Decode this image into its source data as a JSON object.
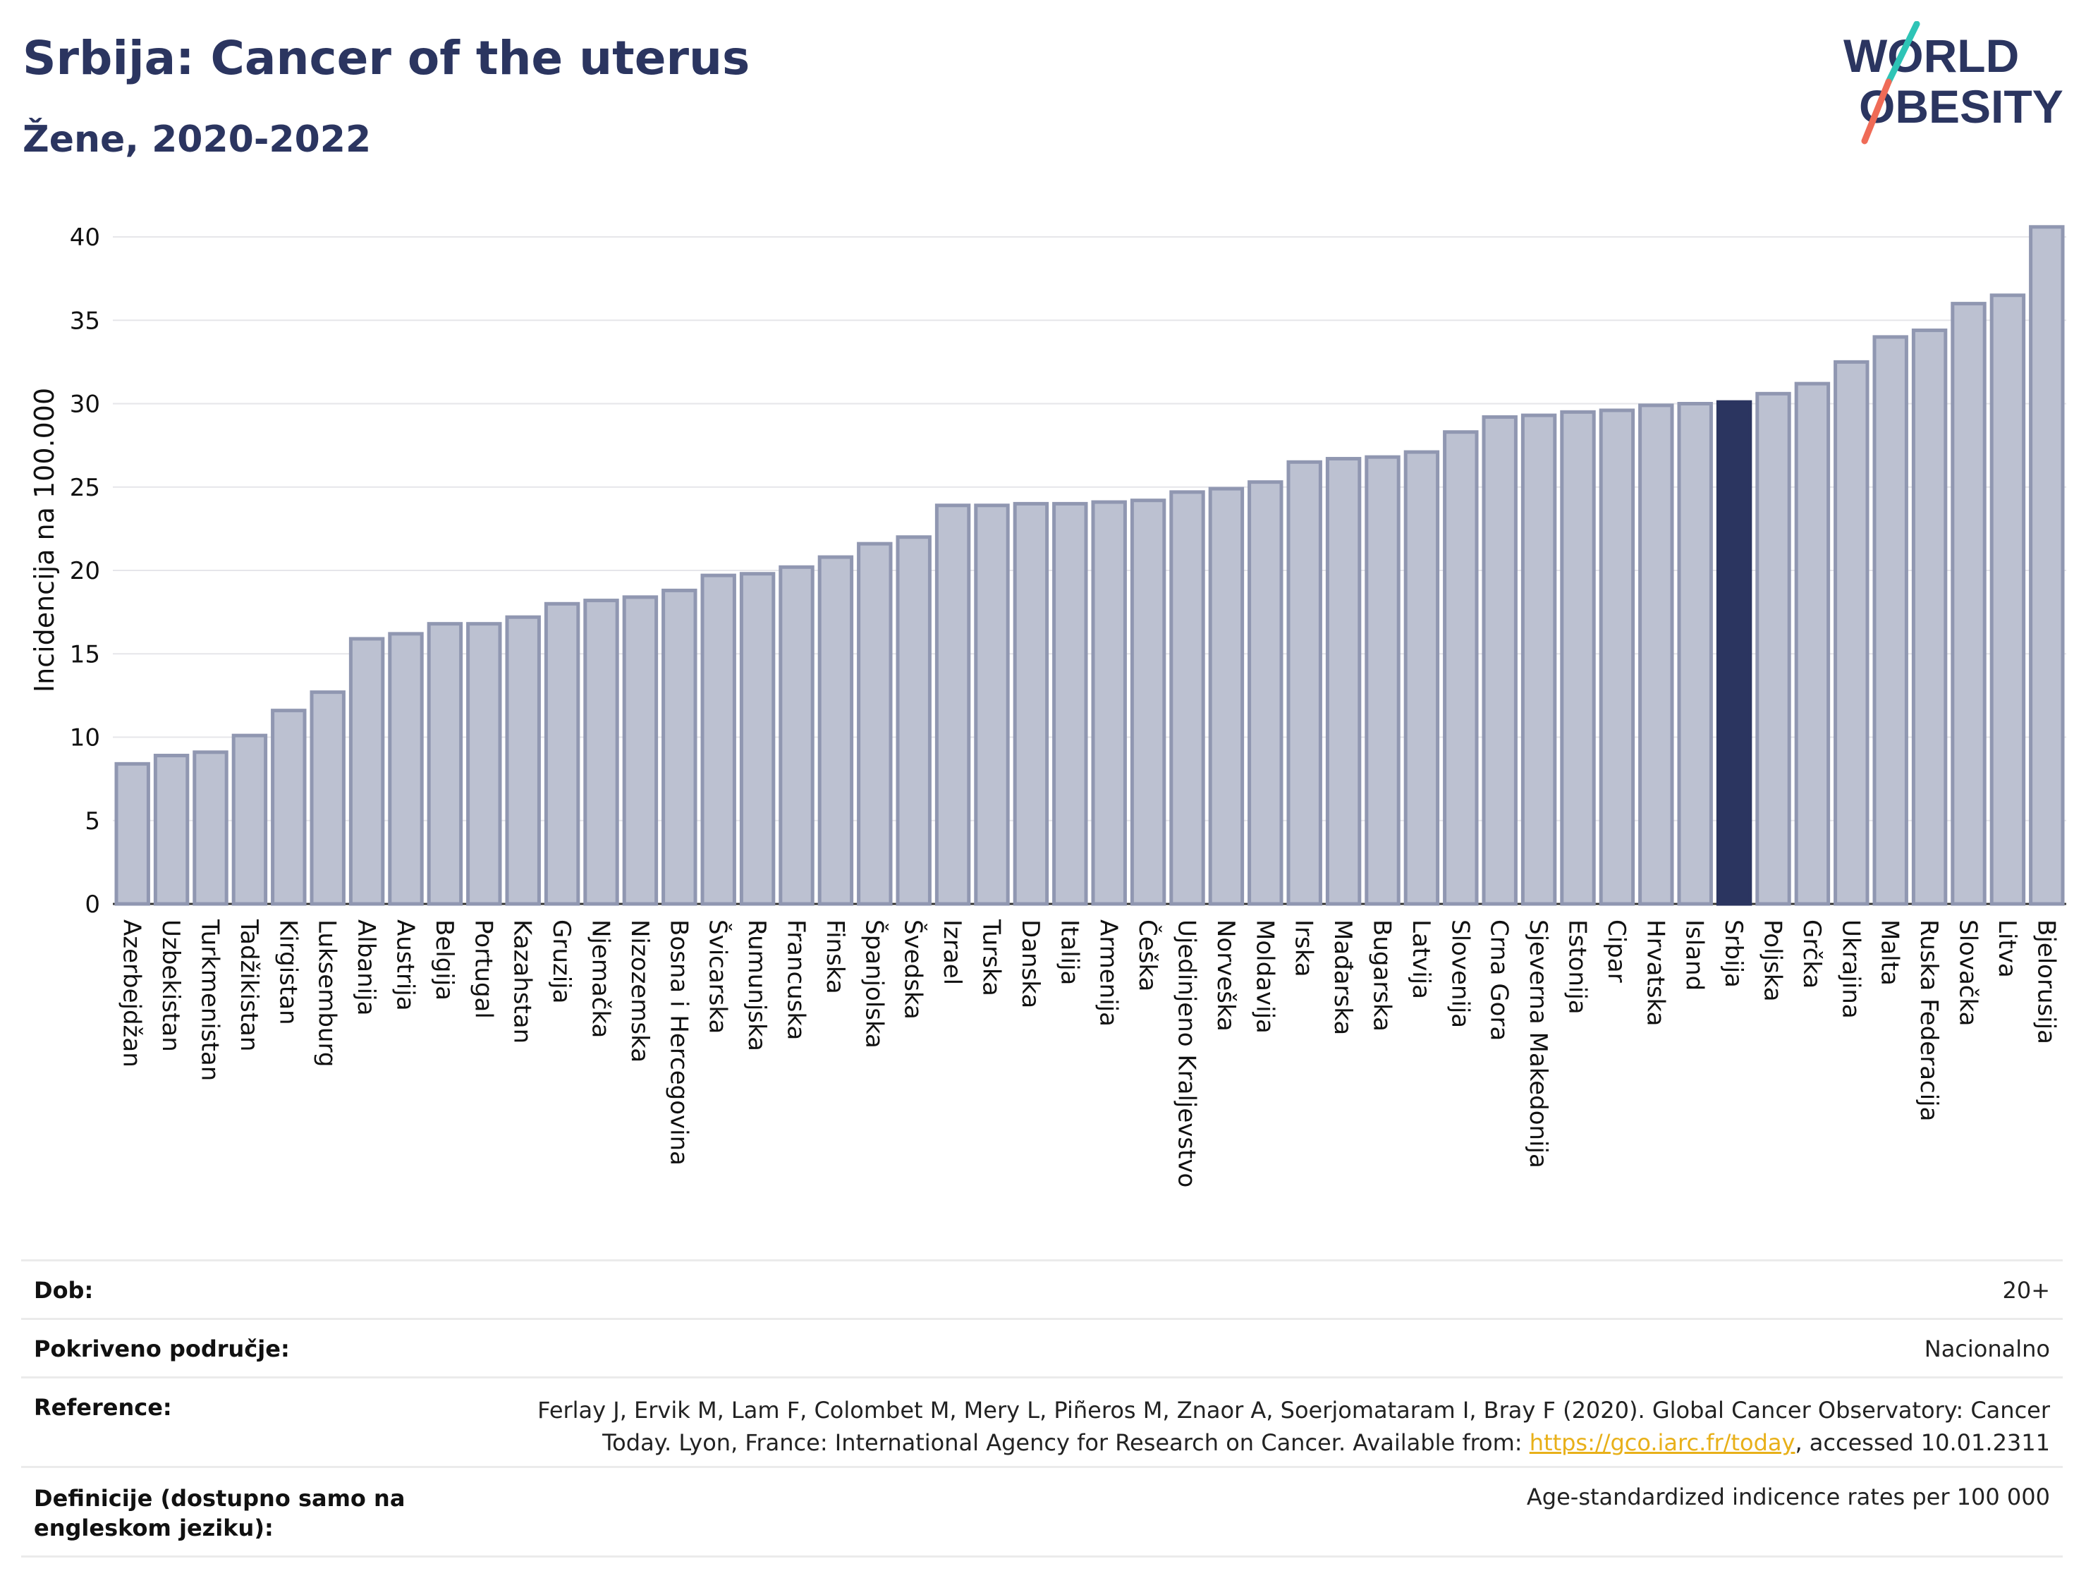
{
  "header": {
    "title": "Srbija: Cancer of the uterus",
    "subtitle": "Žene, 2020-2022"
  },
  "logo": {
    "line1": "WORLD",
    "line2": "OBESITY"
  },
  "colors": {
    "bar_default": "#bcc1d1",
    "bar_default_stroke": "#9097b1",
    "bar_highlight": "#2b3560",
    "text": "#2b3560",
    "link": "#e8b019",
    "logo_teal": "#2ec4b6",
    "logo_coral": "#ef6b57"
  },
  "chart_data": {
    "type": "bar",
    "ylabel": "Incidencija na 100.000",
    "ylim": [
      0,
      42
    ],
    "yticks": [
      0,
      5,
      10,
      15,
      20,
      25,
      30,
      35,
      40
    ],
    "grid": true,
    "highlight": "Srbija",
    "categories": [
      "Azerbejdžan",
      "Uzbekistan",
      "Turkmenistan",
      "Tadžikistan",
      "Kirgistan",
      "Luksemburg",
      "Albanija",
      "Austrija",
      "Belgija",
      "Portugal",
      "Kazahstan",
      "Gruzija",
      "Njemačka",
      "Nizozemska",
      "Bosna i Hercegovina",
      "Švicarska",
      "Rumunjska",
      "Francuska",
      "Finska",
      "Španjolska",
      "Švedska",
      "Izrael",
      "Turska",
      "Danska",
      "Italija",
      "Armenija",
      "Češka",
      "Ujedinjeno Kraljevstvo",
      "Norveška",
      "Moldavija",
      "Irska",
      "Mađarska",
      "Bugarska",
      "Latvija",
      "Slovenija",
      "Crna Gora",
      "Sjeverna Makedonija",
      "Estonija",
      "Cipar",
      "Hrvatska",
      "Island",
      "Srbija",
      "Poljska",
      "Grčka",
      "Ukrajina",
      "Malta",
      "Ruska Federacija",
      "Slovačka",
      "Litva",
      "Bjelorusija"
    ],
    "values": [
      8.4,
      8.9,
      9.1,
      10.1,
      11.6,
      12.7,
      15.9,
      16.2,
      16.8,
      16.8,
      17.2,
      18.0,
      18.2,
      18.4,
      18.8,
      19.7,
      19.8,
      20.2,
      20.8,
      21.6,
      22.0,
      23.9,
      23.9,
      24.0,
      24.0,
      24.1,
      24.2,
      24.7,
      24.9,
      25.3,
      26.5,
      26.7,
      26.8,
      27.1,
      28.3,
      29.2,
      29.3,
      29.5,
      29.6,
      29.9,
      30.0,
      30.1,
      30.6,
      31.2,
      32.5,
      34.0,
      34.4,
      36.0,
      36.5,
      40.6
    ]
  },
  "info": {
    "dob_label": "Dob:",
    "dob_value": "20+",
    "coverage_label": "Pokriveno područje:",
    "coverage_value": "Nacionalno",
    "reference_label": "Reference:",
    "reference_text": "Ferlay J, Ervik M, Lam F, Colombet M, Mery L, Piñeros M, Znaor A, Soerjomataram I, Bray F (2020). Global Cancer Observatory: Cancer Today. Lyon, France: International Agency for Research on Cancer. Available from: ",
    "reference_link": "https://gco.iarc.fr/today",
    "reference_suffix": ", accessed 10.01.2311",
    "definition_label": "Definicije (dostupno samo na engleskom jeziku):",
    "definition_value": "Age-standardized indicence rates per 100 000"
  }
}
